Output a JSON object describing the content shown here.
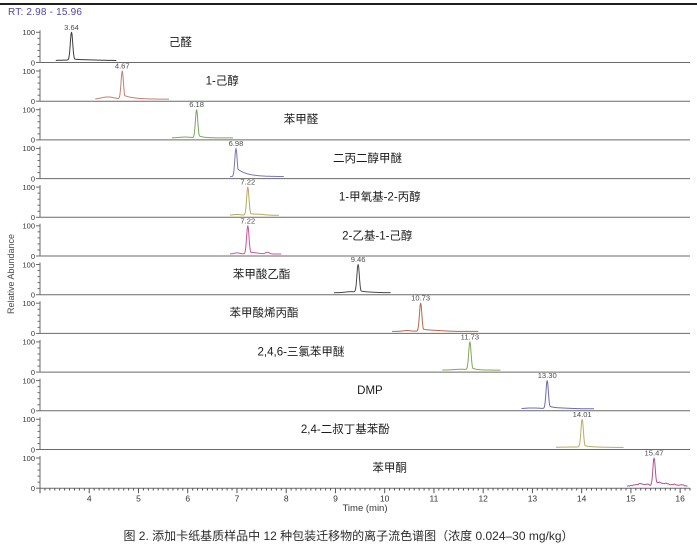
{
  "header": {
    "rt_range_label": "RT: 2.98 - 15.96"
  },
  "axes": {
    "y_label": "Relative Abundance",
    "x_label": "Time (min)",
    "y_tick_top": "100",
    "y_tick_bottom": "0"
  },
  "caption": "图 2. 添加卡纸基质样品中 12 种包装迁移物的离子流色谱图（浓度 0.024–30 mg/kg）",
  "chart_data": {
    "type": "line",
    "title": "添加卡纸基质样品中 12 种包装迁移物的离子流色谱图",
    "xlabel": "Time (min)",
    "ylabel": "Relative Abundance",
    "x_range": [
      3.0,
      16.2
    ],
    "ylim": [
      0,
      100
    ],
    "x_major_ticks": [
      4,
      5,
      6,
      7,
      8,
      9,
      10,
      11,
      12,
      13,
      14,
      15,
      16
    ],
    "y_axis_labels": [
      "100",
      "0"
    ],
    "grid": false,
    "rt_range": "RT: 2.98 - 15.96",
    "panels": [
      {
        "compound": "己醛",
        "rt": 3.64,
        "rt_label": "3.64",
        "label_x": 5.85,
        "color": "#3d3d3d",
        "window": [
          3.32,
          4.55
        ],
        "tail": 0.05,
        "tau": 0.1,
        "bumps": [
          {
            "t": 3.85,
            "h": 2.5,
            "w": 0.3
          }
        ],
        "noise": 0
      },
      {
        "compound": "1-己醇",
        "rt": 4.67,
        "rt_label": "4.67",
        "label_x": 6.7,
        "color": "#c08273",
        "window": [
          4.12,
          5.62
        ],
        "tail": 0.16,
        "tau": 0.2,
        "bumps": [
          {
            "t": 4.38,
            "h": 8,
            "w": 0.13
          }
        ],
        "noise": 0
      },
      {
        "compound": "苯甲醛",
        "rt": 6.18,
        "rt_label": "6.18",
        "label_x": 8.3,
        "color": "#7ea45d",
        "window": [
          5.68,
          6.92
        ],
        "tail": 0.12,
        "tau": 0.1,
        "bumps": [
          {
            "t": 5.95,
            "h": 3,
            "w": 0.12
          }
        ],
        "noise": 0
      },
      {
        "compound": "二丙二醇甲醚",
        "rt": 6.98,
        "rt_label": "6.98",
        "label_x": 9.65,
        "color": "#7c76b5",
        "window": [
          6.86,
          7.95
        ],
        "tail": 0.32,
        "tau": 0.2,
        "bumps": [],
        "noise": 0
      },
      {
        "compound": "1-甲氧基-2-丙醇",
        "rt": 7.22,
        "rt_label": "7.22",
        "label_x": 9.9,
        "color": "#b4aa5f",
        "window": [
          6.86,
          7.85
        ],
        "tail": 0.08,
        "tau": 0.1,
        "bumps": [
          {
            "t": 7.0,
            "h": 3,
            "w": 0.08
          },
          {
            "t": 7.45,
            "h": 3,
            "w": 0.12
          }
        ],
        "noise": 0
      },
      {
        "compound": "2-乙基-1-己醇",
        "rt": 7.22,
        "rt_label": "7.22",
        "label_x": 9.85,
        "color": "#c2599f",
        "window": [
          6.86,
          7.9
        ],
        "tail": 0.08,
        "tau": 0.09,
        "bumps": [
          {
            "t": 7.0,
            "h": 4,
            "w": 0.06
          },
          {
            "t": 7.35,
            "h": 3,
            "w": 0.1
          },
          {
            "t": 7.62,
            "h": 6,
            "w": 0.04
          }
        ],
        "noise": 0
      },
      {
        "compound": "苯甲酸乙酯",
        "rt": 9.46,
        "rt_label": "9.46",
        "label_x": 7.5,
        "color": "#4a4a4a",
        "window": [
          8.97,
          10.12
        ],
        "tail": 0.07,
        "tau": 0.1,
        "bumps": [
          {
            "t": 9.3,
            "h": 3,
            "w": 0.1
          },
          {
            "t": 9.6,
            "h": 2,
            "w": 0.2
          }
        ],
        "noise": 0
      },
      {
        "compound": "苯甲酸烯丙酯",
        "rt": 10.73,
        "rt_label": "10.73",
        "label_x": 7.55,
        "color": "#b26a51",
        "window": [
          10.15,
          11.9
        ],
        "tail": 0.1,
        "tau": 0.12,
        "bumps": [
          {
            "t": 10.45,
            "h": 3,
            "w": 0.08
          },
          {
            "t": 11.0,
            "h": 3,
            "w": 0.2
          }
        ],
        "noise": 0
      },
      {
        "compound": "2,4,6-三氯苯甲醚",
        "rt": 11.73,
        "rt_label": "11.73",
        "label_x": 8.3,
        "color": "#82a758",
        "window": [
          11.17,
          12.35
        ],
        "tail": 0.1,
        "tau": 0.1,
        "bumps": [
          {
            "t": 11.55,
            "h": 3,
            "w": 0.15
          }
        ],
        "noise": 0
      },
      {
        "compound": "DMP",
        "rt": 13.3,
        "rt_label": "13.30",
        "label_x": 9.7,
        "color": "#6e69af",
        "window": [
          12.78,
          14.25
        ],
        "tail": 0.12,
        "tau": 0.12,
        "bumps": [
          {
            "t": 13.0,
            "h": 3,
            "w": 0.15
          },
          {
            "t": 13.6,
            "h": 2,
            "w": 0.2
          }
        ],
        "noise": 0
      },
      {
        "compound": "2,4-二叔丁基苯酚",
        "rt": 14.01,
        "rt_label": "14.01",
        "label_x": 9.2,
        "color": "#b9ae62",
        "window": [
          13.48,
          14.85
        ],
        "tail": 0.08,
        "tau": 0.1,
        "bumps": [
          {
            "t": 14.0,
            "h": 2,
            "w": 0.4
          }
        ],
        "noise": 0
      },
      {
        "compound": "苯甲酮",
        "rt": 15.47,
        "rt_label": "15.47",
        "label_x": 10.1,
        "color": "#b05590",
        "window": [
          14.92,
          16.15
        ],
        "tail": 0.1,
        "tau": 0.08,
        "bumps": [
          {
            "t": 15.08,
            "h": 4,
            "w": 0.04
          },
          {
            "t": 15.2,
            "h": 8,
            "w": 0.05
          },
          {
            "t": 15.33,
            "h": 6,
            "w": 0.04
          },
          {
            "t": 15.58,
            "h": 10,
            "w": 0.05
          },
          {
            "t": 15.72,
            "h": 8,
            "w": 0.06
          },
          {
            "t": 15.88,
            "h": 5,
            "w": 0.05
          },
          {
            "t": 16.02,
            "h": 4,
            "w": 0.04
          }
        ],
        "noise": 2
      }
    ]
  }
}
